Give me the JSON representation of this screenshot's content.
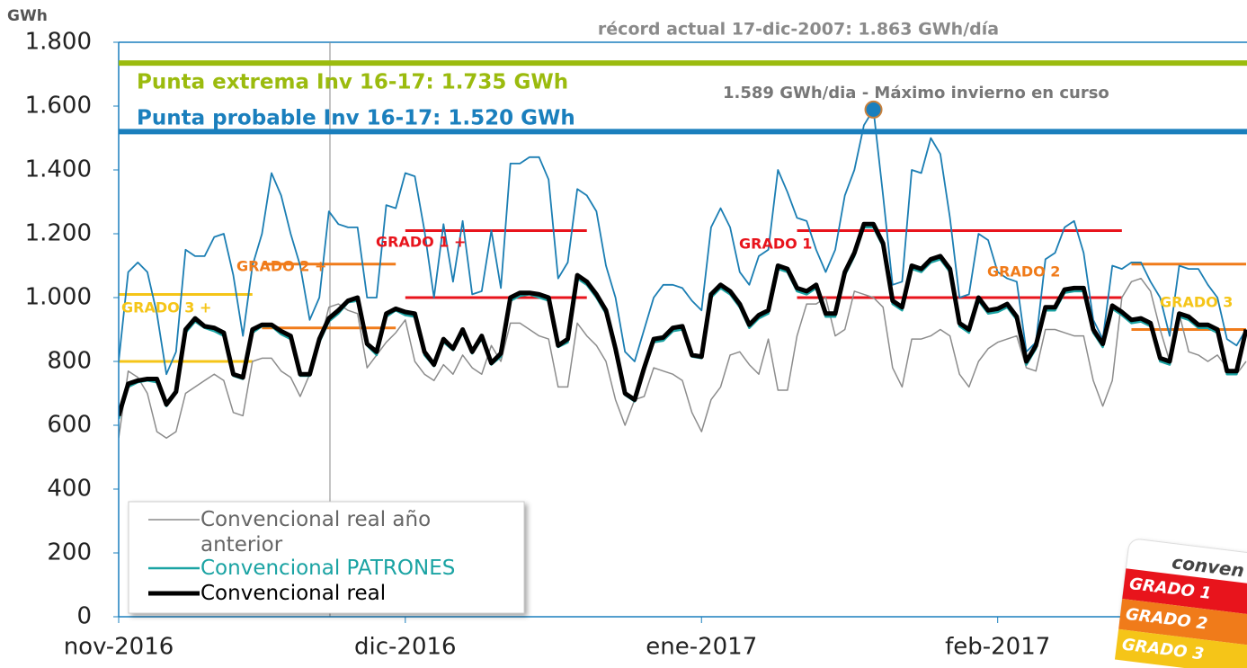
{
  "chart_data": {
    "type": "line",
    "y_unit": "GWh",
    "record_note": "récord actual 17-dic-2007:  1.863 GWh/día",
    "xlim": [
      0,
      118
    ],
    "xticks": [
      {
        "value": 0,
        "label": "nov-2016"
      },
      {
        "value": 30,
        "label": "dic-2016"
      },
      {
        "value": 61,
        "label": "ene-2017"
      },
      {
        "value": 92,
        "label": "feb-2017"
      }
    ],
    "ylim": [
      0,
      1800
    ],
    "yticks": [
      0,
      200,
      400,
      600,
      800,
      {
        "value": 1000,
        "label": "1.000"
      },
      {
        "value": 1200,
        "label": "1.200"
      },
      {
        "value": 1400,
        "label": "1.400"
      },
      {
        "value": 1600,
        "label": "1.600"
      },
      {
        "value": 1800,
        "label": "1.800"
      }
    ],
    "x": [
      0,
      1,
      2,
      3,
      4,
      5,
      6,
      7,
      8,
      9,
      10,
      11,
      12,
      13,
      14,
      15,
      16,
      17,
      18,
      19,
      20,
      21,
      22,
      23,
      24,
      25,
      26,
      27,
      28,
      29,
      30,
      31,
      32,
      33,
      34,
      35,
      36,
      37,
      38,
      39,
      40,
      41,
      42,
      43,
      44,
      45,
      46,
      47,
      48,
      49,
      50,
      51,
      52,
      53,
      54,
      55,
      56,
      57,
      58,
      59,
      60,
      61,
      62,
      63,
      64,
      65,
      66,
      67,
      68,
      69,
      70,
      71,
      72,
      73,
      74,
      75,
      76,
      77,
      78,
      79,
      80,
      81,
      82,
      83,
      84,
      85,
      86,
      87,
      88,
      89,
      90,
      91,
      92,
      93,
      94,
      95,
      96,
      97,
      98,
      99,
      100,
      101,
      102,
      103,
      104,
      105,
      106,
      107,
      108,
      109,
      110,
      111,
      112,
      113,
      114,
      115,
      116,
      117,
      118
    ],
    "series": [
      {
        "name": "Convencional real año anterior",
        "color": "#8c8c8c",
        "width": 1.5,
        "values": [
          560,
          770,
          750,
          700,
          580,
          560,
          580,
          700,
          720,
          740,
          760,
          740,
          640,
          630,
          800,
          810,
          810,
          770,
          750,
          690,
          760,
          850,
          970,
          980,
          960,
          950,
          780,
          820,
          860,
          890,
          930,
          800,
          760,
          740,
          790,
          760,
          820,
          780,
          760,
          850,
          800,
          920,
          920,
          900,
          880,
          870,
          720,
          720,
          920,
          880,
          850,
          800,
          680,
          600,
          680,
          690,
          780,
          770,
          760,
          740,
          640,
          580,
          680,
          720,
          820,
          830,
          790,
          760,
          870,
          710,
          710,
          880,
          980,
          980,
          1000,
          880,
          900,
          1020,
          1010,
          1000,
          970,
          780,
          720,
          870,
          870,
          880,
          900,
          880,
          760,
          720,
          800,
          840,
          860,
          870,
          880,
          780,
          770,
          900,
          900,
          890,
          880,
          880,
          740,
          660,
          740,
          1000,
          1050,
          1060,
          1020,
          900,
          800,
          950,
          830,
          820,
          800,
          820,
          780,
          760,
          800
        ]
      },
      {
        "color": "#1b7eb3",
        "width": 1.8,
        "values": [
          800,
          1080,
          1110,
          1080,
          950,
          760,
          830,
          1150,
          1130,
          1130,
          1190,
          1200,
          1070,
          880,
          1100,
          1200,
          1390,
          1320,
          1200,
          1100,
          930,
          1000,
          1270,
          1230,
          1220,
          1220,
          1000,
          1000,
          1290,
          1280,
          1390,
          1380,
          1210,
          1000,
          1230,
          1050,
          1240,
          1010,
          1020,
          1210,
          1030,
          1420,
          1420,
          1440,
          1440,
          1370,
          1060,
          1110,
          1340,
          1320,
          1270,
          1100,
          1000,
          830,
          800,
          900,
          1000,
          1040,
          1040,
          1030,
          990,
          960,
          1220,
          1280,
          1220,
          1080,
          1040,
          1130,
          1150,
          1400,
          1330,
          1250,
          1240,
          1150,
          1080,
          1150,
          1320,
          1400,
          1540,
          1589,
          1320,
          1040,
          1050,
          1400,
          1390,
          1500,
          1450,
          1250,
          1000,
          1010,
          1200,
          1180,
          1080,
          1060,
          1050,
          830,
          860,
          1120,
          1140,
          1220,
          1240,
          1140,
          930,
          870,
          1100,
          1090,
          1110,
          1110,
          1050,
          1000,
          880,
          1100,
          1090,
          1090,
          1040,
          1000,
          870,
          850,
          900
        ]
      },
      {
        "name": "Convencional PATRONES",
        "color": "#1aa3a3",
        "width": 2.5,
        "values": [
          620,
          720,
          735,
          740,
          735,
          660,
          700,
          890,
          925,
          905,
          895,
          880,
          755,
          745,
          890,
          910,
          910,
          885,
          870,
          755,
          755,
          860,
          925,
          950,
          985,
          990,
          850,
          820,
          940,
          960,
          945,
          940,
          820,
          785,
          860,
          835,
          890,
          825,
          870,
          790,
          815,
          990,
          1005,
          1010,
          1000,
          990,
          845,
          860,
          1060,
          1040,
          1000,
          950,
          830,
          695,
          675,
          770,
          860,
          865,
          895,
          900,
          815,
          810,
          1000,
          1030,
          1010,
          970,
          905,
          935,
          950,
          1090,
          1080,
          1020,
          1010,
          1030,
          940,
          940,
          1070,
          1130,
          1220,
          1220,
          1160,
          980,
          960,
          1090,
          1080,
          1110,
          1120,
          1080,
          910,
          890,
          990,
          950,
          955,
          970,
          930,
          790,
          840,
          960,
          960,
          1015,
          1020,
          1020,
          890,
          845,
          965,
          945,
          920,
          925,
          910,
          800,
          790,
          940,
          930,
          905,
          905,
          890,
          760,
          760,
          890
        ]
      },
      {
        "name": "Convencional real",
        "color": "#000000",
        "width": 5,
        "values": [
          630,
          730,
          740,
          745,
          745,
          665,
          705,
          900,
          935,
          910,
          905,
          890,
          760,
          750,
          900,
          915,
          915,
          895,
          880,
          760,
          760,
          870,
          935,
          960,
          990,
          1000,
          855,
          830,
          950,
          965,
          955,
          950,
          830,
          790,
          870,
          840,
          900,
          830,
          880,
          795,
          825,
          1000,
          1015,
          1015,
          1010,
          1000,
          850,
          870,
          1070,
          1050,
          1010,
          960,
          840,
          700,
          680,
          780,
          870,
          875,
          905,
          910,
          820,
          815,
          1010,
          1040,
          1020,
          980,
          915,
          945,
          960,
          1100,
          1090,
          1030,
          1020,
          1040,
          950,
          950,
          1080,
          1140,
          1230,
          1230,
          1170,
          990,
          970,
          1100,
          1090,
          1120,
          1130,
          1090,
          920,
          900,
          1000,
          960,
          965,
          980,
          940,
          800,
          850,
          970,
          970,
          1025,
          1030,
          1030,
          900,
          855,
          975,
          955,
          930,
          935,
          920,
          810,
          800,
          950,
          940,
          915,
          915,
          900,
          770,
          770,
          900
        ]
      }
    ],
    "reference_lines": [
      {
        "label": "Punta extrema Inv 16-17: 1.735 GWh",
        "value": 1735,
        "color": "#9bbb0e"
      },
      {
        "label": "Punta probable Inv 16-17: 1.520 GWh",
        "value": 1520,
        "color": "#1a7fbd"
      }
    ],
    "bands": [
      {
        "color": "#f5c518",
        "values": [
          1010,
          800
        ],
        "x": [
          0,
          14
        ]
      },
      {
        "color": "#f07b1a",
        "values": [
          1105,
          905
        ],
        "x": [
          15,
          29
        ]
      },
      {
        "color": "#e8141c",
        "values": [
          1210,
          1000
        ],
        "x": [
          30,
          49
        ]
      },
      {
        "color": "#e8141c",
        "values": [
          1210,
          1000
        ],
        "x": [
          71,
          105
        ]
      },
      {
        "color": "#f07b1a",
        "values": [
          1105,
          900
        ],
        "x": [
          106,
          118
        ]
      }
    ],
    "grade_labels": [
      {
        "text": "GRADO 3 +",
        "color": "#f5c518"
      },
      {
        "text": "GRADO 2 +",
        "color": "#f07b1a"
      },
      {
        "text": "GRADO 1 +",
        "color": "#e8141c"
      },
      {
        "text": "GRADO 1",
        "color": "#e8141c"
      },
      {
        "text": "GRADO 2",
        "color": "#f07b1a"
      },
      {
        "text": "GRADO 3",
        "color": "#f5c518"
      }
    ],
    "peak": {
      "x": 79,
      "value": 1589,
      "label": "1.589 GWh/dia - Máximo invierno en curso",
      "color": "#1a7fbd"
    },
    "inset": {
      "title": "conven",
      "grades": [
        "GRADO 1",
        "GRADO 2",
        "GRADO 3"
      ]
    }
  }
}
